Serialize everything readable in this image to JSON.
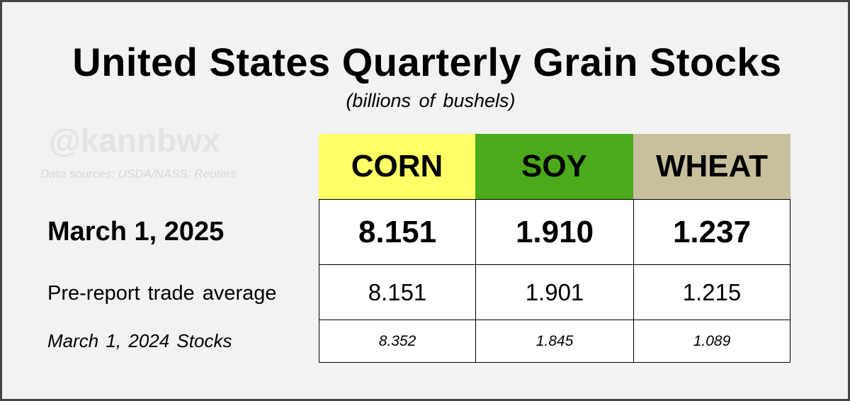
{
  "title": "United States Quarterly Grain Stocks",
  "subtitle": "(billions of bushels)",
  "watermark": "@kannbwx",
  "sources": "Data sources: USDA/NASS; Reuters",
  "colors": {
    "corn": "#ffff66",
    "soy": "#4ba91b",
    "wheat": "#c8bf9d",
    "background": "#f2f2f2",
    "border": "#444444"
  },
  "chart_data": {
    "type": "table",
    "columns": [
      {
        "key": "corn",
        "label": "CORN"
      },
      {
        "key": "soy",
        "label": "SOY"
      },
      {
        "key": "wheat",
        "label": "WHEAT"
      }
    ],
    "rows": [
      {
        "key": "current",
        "label": "March 1, 2025",
        "values": [
          "8.151",
          "1.910",
          "1.237"
        ]
      },
      {
        "key": "estimate",
        "label": "Pre-report trade average",
        "values": [
          "8.151",
          "1.901",
          "1.215"
        ]
      },
      {
        "key": "previous",
        "label": "March 1, 2024 Stocks",
        "values": [
          "8.352",
          "1.845",
          "1.089"
        ]
      }
    ]
  }
}
